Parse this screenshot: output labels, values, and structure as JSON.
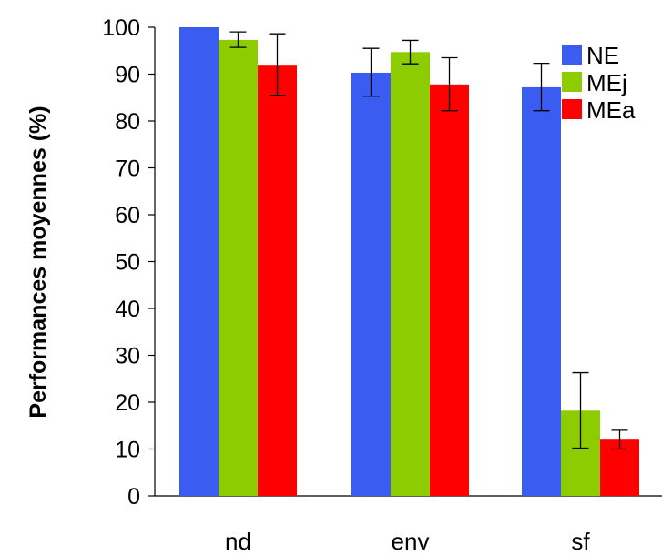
{
  "chart_data": {
    "type": "bar",
    "categories": [
      "nd",
      "env",
      "sf"
    ],
    "series": [
      {
        "name": "NE",
        "color": "#3b5cf0",
        "values": [
          100,
          90.3,
          87.2
        ],
        "err_low": [
          100,
          85.3,
          82.2
        ],
        "err_high": [
          100,
          95.5,
          92.3
        ]
      },
      {
        "name": "MEj",
        "color": "#8ccc00",
        "values": [
          97.3,
          94.7,
          18.2
        ],
        "err_low": [
          95.7,
          92.2,
          10.2
        ],
        "err_high": [
          99.0,
          97.2,
          26.3
        ]
      },
      {
        "name": "MEa",
        "color": "#ff0000",
        "values": [
          92.0,
          87.8,
          12.0
        ],
        "err_low": [
          85.5,
          82.2,
          10.0
        ],
        "err_high": [
          98.6,
          93.5,
          14.0
        ]
      }
    ],
    "title": "",
    "xlabel": "",
    "ylabel": "Performances moyennes (%)",
    "ylim": [
      0,
      100
    ],
    "yticks": [
      "0",
      "10",
      "20",
      "30",
      "40",
      "50",
      "60",
      "70",
      "80",
      "90",
      "100"
    ],
    "grid": false,
    "legend_position": "top-right"
  }
}
